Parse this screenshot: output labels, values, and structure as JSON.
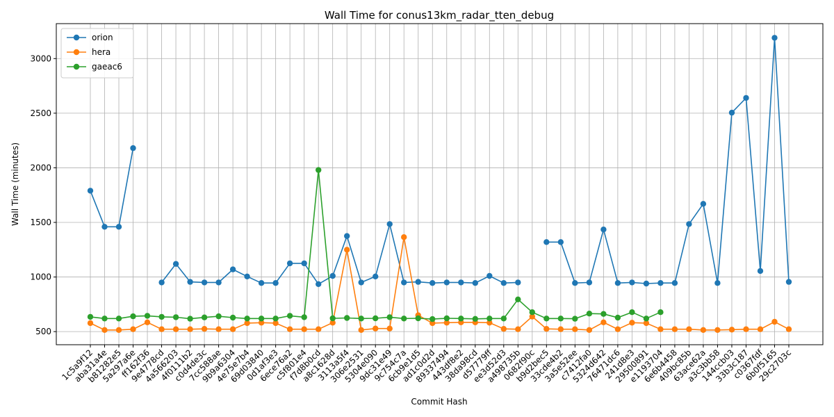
{
  "chart_data": {
    "type": "line",
    "title": "Wall Time for conus13km_radar_tten_debug",
    "xlabel": "Commit Hash",
    "ylabel": "Wall Time (minutes)",
    "ylim": [
      380,
      3320
    ],
    "yticks": [
      500,
      1000,
      1500,
      2000,
      2500,
      3000
    ],
    "grid": true,
    "legend_position": "top-left",
    "categories": [
      "1c5a9f12",
      "aba31a4e",
      "b81282e5",
      "5a297a6e",
      "ff162f36",
      "9e4778cd",
      "4a566203",
      "4f0111b2",
      "c0d4de3c",
      "7cc588ae",
      "9b9a6304",
      "4e75e7b4",
      "69d03840",
      "0d1af3e3",
      "6ece76a2",
      "c5f801e4",
      "f7d8b0cd",
      "a8c1628d",
      "3113a5f4",
      "306e2531",
      "5304e090",
      "9dc31e49",
      "9c754c7a",
      "6cb9e1d5",
      "ad1c0d2d",
      "89337494",
      "443df8e2",
      "38da98cd",
      "d57779ff",
      "ee3d52d3",
      "a498735b",
      "0682f90c",
      "b9d2bec5",
      "33cde4b2",
      "3a5e52ee",
      "c7412fa0",
      "5324d642",
      "76471dc6",
      "241d8e3",
      "29500891",
      "e1193704",
      "6e6b4458",
      "409bc85b",
      "63ace62a",
      "a3c3bb58",
      "144ccb03",
      "33b3c187",
      "c0367fdf",
      "6b0f5165",
      "29c2703c"
    ],
    "series": [
      {
        "name": "orion",
        "color": "#1f77b4",
        "values": [
          1790,
          1460,
          1460,
          2180,
          null,
          950,
          1120,
          955,
          950,
          950,
          1070,
          1005,
          945,
          945,
          1125,
          1125,
          935,
          1010,
          1375,
          950,
          1005,
          1485,
          950,
          955,
          945,
          950,
          950,
          945,
          1010,
          945,
          950,
          null,
          1320,
          1320,
          945,
          950,
          1435,
          945,
          950,
          940,
          945,
          945,
          1485,
          1670,
          945,
          2505,
          2640,
          1055,
          3190,
          955
        ]
      },
      {
        "name": "hera",
        "color": "#ff7f0e",
        "values": [
          578,
          515,
          515,
          522,
          585,
          522,
          522,
          522,
          525,
          522,
          522,
          578,
          582,
          578,
          522,
          522,
          522,
          582,
          1250,
          515,
          528,
          528,
          1365,
          650,
          578,
          582,
          585,
          585,
          582,
          525,
          522,
          638,
          525,
          522,
          522,
          515,
          585,
          522,
          582,
          578,
          522,
          522,
          522,
          515,
          515,
          518,
          522,
          522,
          590,
          522
        ]
      },
      {
        "name": "gaeac6",
        "color": "#2ca02c",
        "values": [
          635,
          620,
          620,
          640,
          645,
          635,
          632,
          618,
          630,
          640,
          628,
          620,
          620,
          620,
          645,
          632,
          1980,
          622,
          625,
          620,
          622,
          632,
          620,
          622,
          615,
          622,
          620,
          617,
          620,
          620,
          795,
          678,
          620,
          620,
          618,
          665,
          662,
          628,
          678,
          620,
          678,
          null,
          null,
          null,
          null,
          null,
          null,
          null,
          null,
          null
        ]
      }
    ]
  }
}
